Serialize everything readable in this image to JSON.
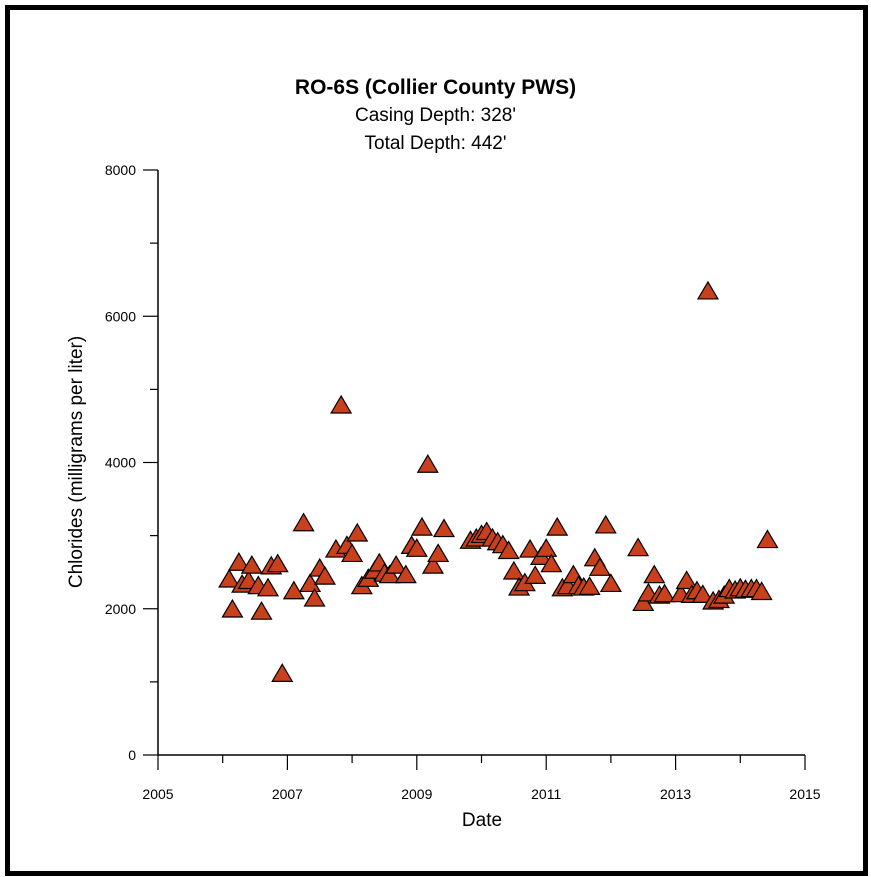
{
  "chart_data": {
    "type": "scatter",
    "title": "RO-6S (Collier County PWS)",
    "subtitle_lines": [
      "Casing Depth:  328'",
      "Total Depth:  442'"
    ],
    "xlabel": "Date",
    "ylabel": "Chlorides (milligrams per liter)",
    "xlim": [
      2005,
      2015
    ],
    "ylim": [
      0,
      8000
    ],
    "x_ticks": [
      2005,
      2007,
      2009,
      2011,
      2013,
      2015
    ],
    "x_tick_labels": [
      "2005",
      "2007",
      "2009",
      "2011",
      "2013",
      "2015"
    ],
    "y_ticks": [
      0,
      2000,
      4000,
      6000,
      8000
    ],
    "y_tick_labels": [
      "0",
      "2000",
      "4000",
      "6000",
      "8000"
    ],
    "grid": false,
    "marker": "triangle",
    "marker_color": "#C8401C",
    "marker_edge_color": "#000000",
    "points": [
      [
        2006.1,
        2390
      ],
      [
        2006.15,
        1980
      ],
      [
        2006.25,
        2620
      ],
      [
        2006.3,
        2320
      ],
      [
        2006.4,
        2370
      ],
      [
        2006.45,
        2580
      ],
      [
        2006.55,
        2300
      ],
      [
        2006.6,
        1950
      ],
      [
        2006.7,
        2270
      ],
      [
        2006.75,
        2570
      ],
      [
        2006.85,
        2600
      ],
      [
        2006.92,
        1100
      ],
      [
        2007.1,
        2230
      ],
      [
        2007.25,
        3160
      ],
      [
        2007.35,
        2330
      ],
      [
        2007.42,
        2130
      ],
      [
        2007.5,
        2540
      ],
      [
        2007.58,
        2430
      ],
      [
        2007.75,
        2800
      ],
      [
        2007.83,
        4770
      ],
      [
        2007.92,
        2850
      ],
      [
        2008.0,
        2740
      ],
      [
        2008.08,
        3020
      ],
      [
        2008.15,
        2300
      ],
      [
        2008.25,
        2400
      ],
      [
        2008.35,
        2510
      ],
      [
        2008.42,
        2610
      ],
      [
        2008.5,
        2470
      ],
      [
        2008.58,
        2450
      ],
      [
        2008.68,
        2580
      ],
      [
        2008.83,
        2450
      ],
      [
        2008.92,
        2850
      ],
      [
        2009.0,
        2810
      ],
      [
        2009.08,
        3100
      ],
      [
        2009.17,
        3960
      ],
      [
        2009.25,
        2580
      ],
      [
        2009.33,
        2740
      ],
      [
        2009.42,
        3080
      ],
      [
        2009.83,
        2920
      ],
      [
        2009.92,
        2950
      ],
      [
        2010.0,
        3000
      ],
      [
        2010.08,
        3040
      ],
      [
        2010.17,
        2950
      ],
      [
        2010.25,
        2900
      ],
      [
        2010.33,
        2860
      ],
      [
        2010.42,
        2780
      ],
      [
        2010.5,
        2500
      ],
      [
        2010.58,
        2280
      ],
      [
        2010.67,
        2340
      ],
      [
        2010.75,
        2800
      ],
      [
        2010.83,
        2440
      ],
      [
        2010.92,
        2700
      ],
      [
        2011.0,
        2810
      ],
      [
        2011.08,
        2600
      ],
      [
        2011.17,
        3100
      ],
      [
        2011.25,
        2270
      ],
      [
        2011.33,
        2300
      ],
      [
        2011.42,
        2450
      ],
      [
        2011.5,
        2300
      ],
      [
        2011.58,
        2280
      ],
      [
        2011.67,
        2290
      ],
      [
        2011.75,
        2680
      ],
      [
        2011.83,
        2550
      ],
      [
        2011.92,
        3130
      ],
      [
        2012.0,
        2330
      ],
      [
        2012.42,
        2820
      ],
      [
        2012.5,
        2070
      ],
      [
        2012.58,
        2200
      ],
      [
        2012.67,
        2450
      ],
      [
        2012.75,
        2170
      ],
      [
        2012.83,
        2190
      ],
      [
        2013.08,
        2190
      ],
      [
        2013.17,
        2370
      ],
      [
        2013.25,
        2180
      ],
      [
        2013.33,
        2230
      ],
      [
        2013.42,
        2180
      ],
      [
        2013.5,
        6330
      ],
      [
        2013.58,
        2090
      ],
      [
        2013.67,
        2110
      ],
      [
        2013.75,
        2170
      ],
      [
        2013.83,
        2260
      ],
      [
        2013.92,
        2240
      ],
      [
        2014.0,
        2270
      ],
      [
        2014.08,
        2250
      ],
      [
        2014.17,
        2260
      ],
      [
        2014.25,
        2260
      ],
      [
        2014.33,
        2220
      ],
      [
        2014.42,
        2930
      ]
    ]
  }
}
